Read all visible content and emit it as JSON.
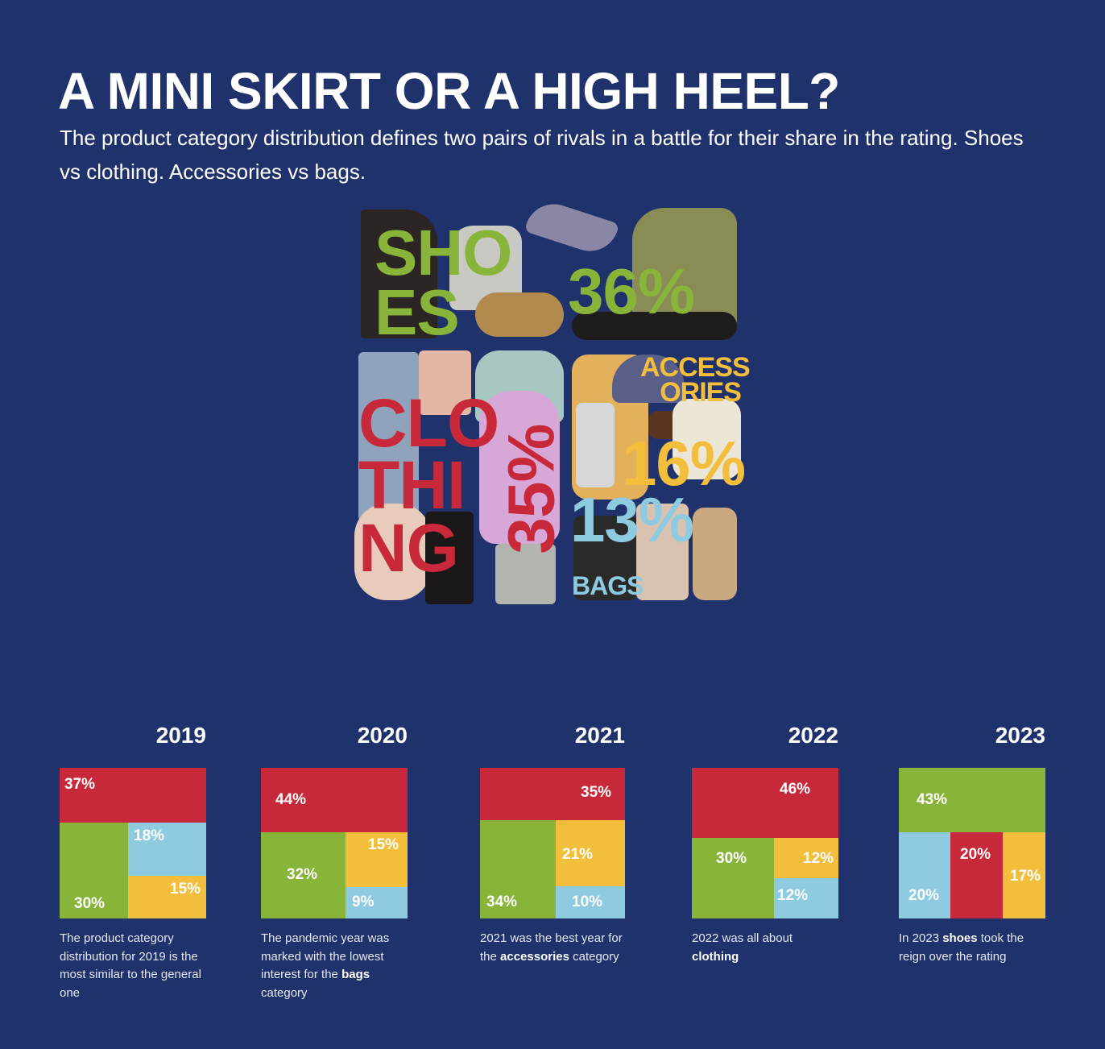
{
  "header": {
    "title": "A MINI SKIRT OR A HIGH HEEL?",
    "subtitle": "The product category distribution defines two pairs of rivals in a battle for their share in the rating. Shoes vs clothing. Accessories vs bags."
  },
  "colors": {
    "background": "#1f326b",
    "shoes": "#89b43a",
    "clothing": "#c8293a",
    "accessories": "#f2be3c",
    "bags": "#8ecbe0"
  },
  "collage": {
    "shoes": {
      "label_line1": "SHO",
      "label_line2": "ES",
      "pct": "36%"
    },
    "clothing": {
      "label_line1": "CLO",
      "label_line2": "THI",
      "label_line3": "NG",
      "pct": "35%"
    },
    "accessories": {
      "label_line1": "ACCESS",
      "label_line2": "ORIES",
      "pct": "16%"
    },
    "bags": {
      "label": "BAGS",
      "pct": "13%"
    }
  },
  "chart_data": {
    "type": "treemap",
    "overall": [
      {
        "category": "Shoes",
        "value": 36
      },
      {
        "category": "Clothing",
        "value": 35
      },
      {
        "category": "Accessories",
        "value": 16
      },
      {
        "category": "Bags",
        "value": 13
      }
    ],
    "years": [
      {
        "year": "2019",
        "cells": [
          {
            "category": "clothing",
            "label": "37%",
            "value": 37
          },
          {
            "category": "shoes",
            "label": "30%",
            "value": 30
          },
          {
            "category": "bags",
            "label": "18%",
            "value": 18
          },
          {
            "category": "accessories",
            "label": "15%",
            "value": 15
          }
        ],
        "desc_parts": [
          "The product category distribution for 2019 is the most similar to the general one",
          "",
          ""
        ]
      },
      {
        "year": "2020",
        "cells": [
          {
            "category": "clothing",
            "label": "44%",
            "value": 44
          },
          {
            "category": "shoes",
            "label": "32%",
            "value": 32
          },
          {
            "category": "accessories",
            "label": "15%",
            "value": 15
          },
          {
            "category": "bags",
            "label": "9%",
            "value": 9
          }
        ],
        "desc_parts": [
          "The pandemic year was marked with the lowest interest for the ",
          "bags",
          " category"
        ]
      },
      {
        "year": "2021",
        "cells": [
          {
            "category": "clothing",
            "label": "35%",
            "value": 35
          },
          {
            "category": "shoes",
            "label": "34%",
            "value": 34
          },
          {
            "category": "accessories",
            "label": "21%",
            "value": 21
          },
          {
            "category": "bags",
            "label": "10%",
            "value": 10
          }
        ],
        "desc_parts": [
          "2021 was the best year for the ",
          "accessories",
          " category"
        ]
      },
      {
        "year": "2022",
        "cells": [
          {
            "category": "clothing",
            "label": "46%",
            "value": 46
          },
          {
            "category": "shoes",
            "label": "30%",
            "value": 30
          },
          {
            "category": "accessories",
            "label": "12%",
            "value": 12
          },
          {
            "category": "bags",
            "label": "12%",
            "value": 12
          }
        ],
        "desc_parts": [
          "2022 was all about ",
          "clothing",
          ""
        ]
      },
      {
        "year": "2023",
        "cells": [
          {
            "category": "shoes",
            "label": "43%",
            "value": 43
          },
          {
            "category": "bags",
            "label": "20%",
            "value": 20
          },
          {
            "category": "clothing",
            "label": "20%",
            "value": 20
          },
          {
            "category": "accessories",
            "label": "17%",
            "value": 17
          }
        ],
        "desc_parts": [
          "In 2023 ",
          "shoes",
          " took the reign over the rating"
        ]
      }
    ]
  }
}
